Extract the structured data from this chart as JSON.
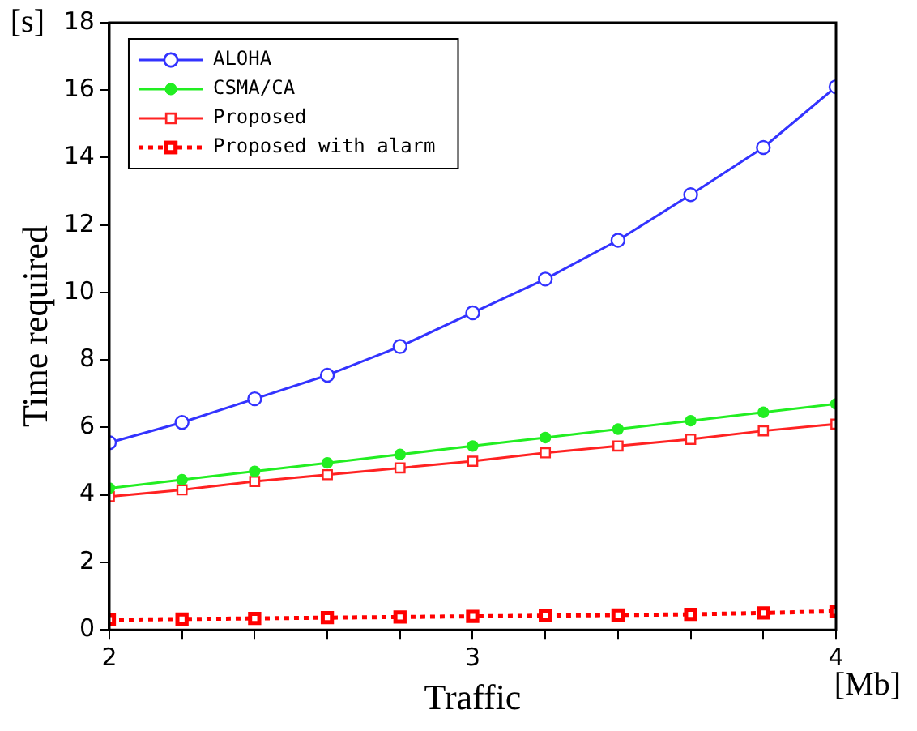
{
  "chart_data": {
    "type": "line",
    "xlabel": "Traffic",
    "ylabel": "Time required",
    "annotations": [
      "[s]",
      "[Mb]"
    ],
    "x": [
      2,
      2.2,
      2.4,
      2.6,
      2.8,
      3,
      3.2,
      3.4,
      3.6,
      3.8,
      4
    ],
    "series": [
      {
        "name": "ALOHA",
        "color": "#3333ff",
        "marker": "circle",
        "values": [
          5.55,
          6.15,
          6.85,
          7.55,
          8.4,
          9.4,
          10.4,
          11.55,
          12.9,
          14.3,
          16.1
        ]
      },
      {
        "name": "CSMA/CA",
        "color": "#22ee22",
        "marker": "circle",
        "values": [
          4.2,
          4.45,
          4.7,
          4.95,
          5.2,
          5.45,
          5.7,
          5.95,
          6.2,
          6.45,
          6.7
        ]
      },
      {
        "name": "Proposed",
        "color": "#ff2222",
        "marker": "square",
        "values": [
          3.95,
          4.15,
          4.4,
          4.6,
          4.8,
          5.0,
          5.25,
          5.45,
          5.65,
          5.9,
          6.1
        ]
      },
      {
        "name": "Proposed with alarm",
        "color": "#ff0000",
        "marker": "square",
        "line_style": "dotted",
        "values": [
          0.3,
          0.32,
          0.34,
          0.36,
          0.38,
          0.4,
          0.42,
          0.44,
          0.46,
          0.5,
          0.55
        ]
      }
    ],
    "xlim": [
      2,
      4
    ],
    "xticks": [
      2,
      {
        "value": 2.2,
        "label": null
      },
      {
        "value": 2.4,
        "label": null
      },
      {
        "value": 2.6,
        "label": null
      },
      {
        "value": 2.8,
        "label": null
      },
      3,
      {
        "value": 3.2,
        "label": null
      },
      {
        "value": 3.4,
        "label": null
      },
      {
        "value": 3.6,
        "label": null
      },
      {
        "value": 3.8,
        "label": null
      },
      4
    ],
    "ylim": [
      0,
      18
    ],
    "yticks": [
      0,
      2,
      4,
      6,
      8,
      10,
      12,
      14,
      16,
      18
    ],
    "grid": false,
    "legend": "top left"
  }
}
